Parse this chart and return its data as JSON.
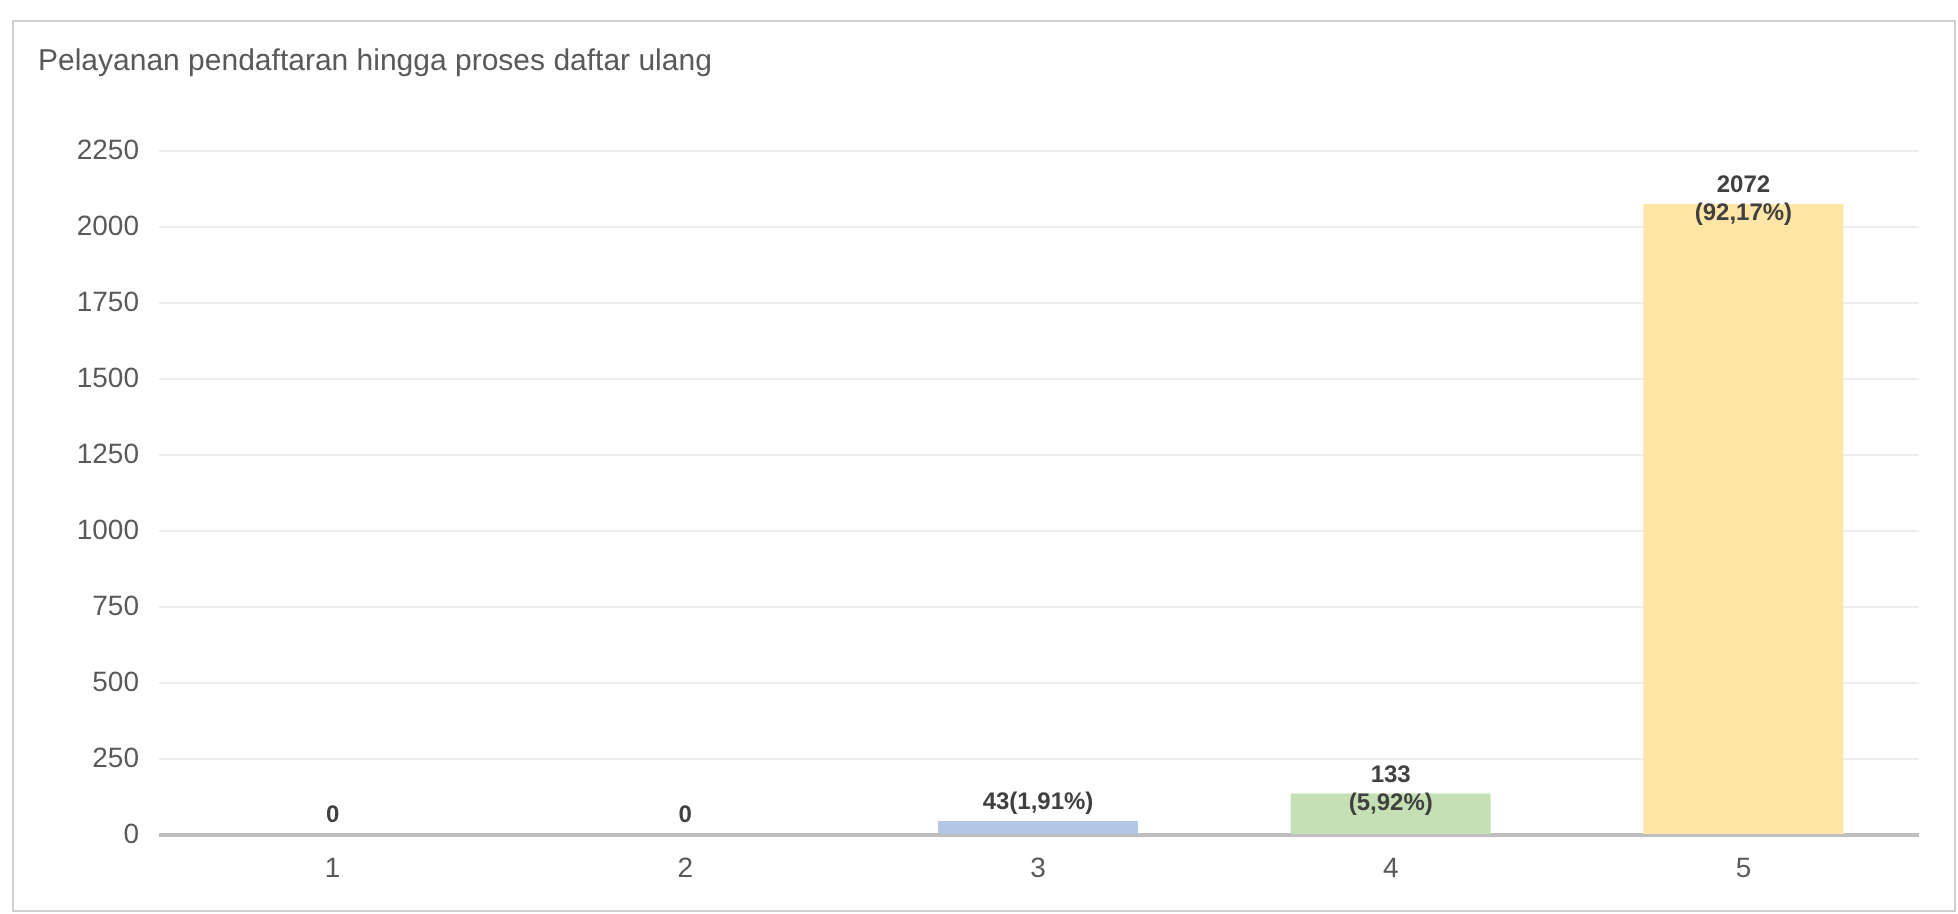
{
  "chart_data": {
    "type": "bar",
    "title": "Pelayanan pendaftaran hingga proses daftar ulang",
    "categories": [
      "1",
      "2",
      "3",
      "4",
      "5"
    ],
    "values": [
      0,
      0,
      43,
      133,
      2072
    ],
    "colors": [
      "#f4b183",
      "#a9a9a9",
      "#b4c7e7",
      "#c5e0b4",
      "#ffe6a6"
    ],
    "value_labels": [
      "0",
      "0",
      "43(1,91%)",
      "133\n(5,92%)",
      "2072\n(92,17%)"
    ],
    "ylim": [
      0,
      2250
    ],
    "yticks": [
      0,
      250,
      500,
      750,
      1000,
      1250,
      1500,
      1750,
      2000,
      2250
    ],
    "grid": "y"
  }
}
